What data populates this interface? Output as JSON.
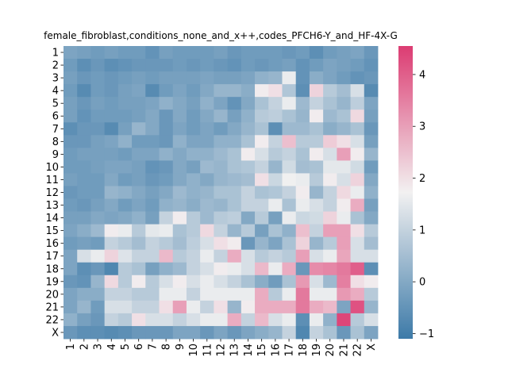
{
  "chart_data": {
    "type": "heatmap",
    "title": "female_fibroblast,conditions_none_and_x++,codes_PFCH6-Y_and_HF-4X-G",
    "xlabel": "",
    "ylabel": "",
    "row_labels": [
      "1",
      "2",
      "3",
      "4",
      "5",
      "6",
      "7",
      "8",
      "9",
      "10",
      "11",
      "12",
      "13",
      "14",
      "15",
      "16",
      "17",
      "18",
      "19",
      "20",
      "21",
      "22",
      "X"
    ],
    "col_labels": [
      "1",
      "2",
      "3",
      "4",
      "5",
      "6",
      "7",
      "8",
      "9",
      "10",
      "11",
      "12",
      "13",
      "14",
      "15",
      "16",
      "17",
      "18",
      "19",
      "20",
      "21",
      "22",
      "X"
    ],
    "colorbar": {
      "min": -1.1,
      "max": 4.55,
      "ticks": [
        -1,
        0,
        1,
        2,
        3,
        4
      ],
      "colors": {
        "low": "#3d7aa8",
        "mid": "#f2f1f1",
        "high": "#dc3c72"
      }
    },
    "values": [
      [
        -0.1,
        -0.2,
        -0.3,
        -0.2,
        -0.3,
        -0.3,
        -0.5,
        -0.2,
        -0.3,
        -0.3,
        -0.3,
        -0.2,
        -0.4,
        -0.3,
        -0.3,
        -0.3,
        -0.4,
        -0.3,
        -0.6,
        -0.3,
        -0.2,
        -0.1,
        -0.4
      ],
      [
        -0.3,
        -0.6,
        -0.4,
        -0.6,
        -0.5,
        -0.4,
        -0.4,
        -0.4,
        -0.3,
        -0.4,
        -0.3,
        -0.4,
        -0.5,
        -0.3,
        -0.4,
        -0.3,
        -0.2,
        -0.5,
        -0.3,
        -0.1,
        -0.2,
        -0.3,
        -0.5
      ],
      [
        -0.2,
        -0.4,
        -0.3,
        -0.4,
        -0.3,
        -0.2,
        -0.3,
        -0.2,
        -0.2,
        -0.2,
        -0.1,
        -0.2,
        -0.2,
        -0.1,
        0.2,
        0.3,
        1.6,
        -0.5,
        0.1,
        -0.1,
        -0.3,
        -0.5,
        -0.4
      ],
      [
        -0.3,
        -0.7,
        -0.3,
        -0.4,
        -0.2,
        -0.1,
        -0.7,
        -0.3,
        -0.1,
        -0.3,
        0.0,
        0.3,
        0.3,
        0.1,
        1.8,
        2.0,
        0.7,
        -0.6,
        2.2,
        0.8,
        0.5,
        1.3,
        -0.7
      ],
      [
        -0.2,
        -0.4,
        -0.2,
        -0.3,
        -0.2,
        -0.2,
        -0.1,
        0.2,
        0.0,
        -0.2,
        0.2,
        -0.1,
        -0.5,
        0.0,
        0.6,
        1.0,
        1.6,
        0.4,
        1.0,
        0.6,
        0.3,
        0.9,
        -0.1
      ],
      [
        -0.2,
        -0.5,
        -0.3,
        -0.3,
        -0.3,
        -0.2,
        0.0,
        -0.4,
        0.0,
        -0.3,
        0.0,
        0.3,
        -0.2,
        0.2,
        0.8,
        0.9,
        0.6,
        0.3,
        1.8,
        0.4,
        0.6,
        2.1,
        -0.2
      ],
      [
        -0.6,
        -0.4,
        -0.4,
        -0.7,
        -0.2,
        0.3,
        0.0,
        -0.4,
        -0.1,
        -0.3,
        -0.1,
        -0.3,
        0.0,
        0.3,
        0.6,
        -0.6,
        0.4,
        0.4,
        0.6,
        0.1,
        0.3,
        0.6,
        -0.4
      ],
      [
        -0.4,
        -0.4,
        -0.2,
        -0.1,
        0.2,
        -0.3,
        -0.3,
        -0.4,
        0.2,
        -0.1,
        -0.1,
        0.2,
        0.2,
        0.6,
        1.8,
        1.0,
        2.5,
        0.8,
        0.8,
        2.3,
        2.0,
        1.3,
        -0.2
      ],
      [
        -0.3,
        -0.2,
        -0.2,
        -0.2,
        -0.3,
        -0.1,
        -0.1,
        0.2,
        0.0,
        0.2,
        0.2,
        0.4,
        0.6,
        1.8,
        1.3,
        0.8,
        1.0,
        0.6,
        1.8,
        1.3,
        3.0,
        1.8,
        0.3
      ],
      [
        -0.3,
        -0.3,
        -0.2,
        -0.1,
        -0.1,
        -0.2,
        -0.5,
        -0.4,
        0.0,
        -0.2,
        0.4,
        0.3,
        0.6,
        0.7,
        1.0,
        0.3,
        1.2,
        0.5,
        0.6,
        1.5,
        1.5,
        1.2,
        -0.3
      ],
      [
        -0.2,
        -0.3,
        -0.3,
        0.0,
        -0.3,
        -0.2,
        -0.4,
        -0.3,
        0.0,
        0.2,
        0.0,
        0.3,
        0.4,
        0.5,
        2.0,
        1.1,
        1.7,
        1.6,
        0.8,
        1.8,
        1.3,
        2.2,
        0.0
      ],
      [
        -0.4,
        -0.3,
        -0.3,
        0.3,
        0.2,
        0.0,
        -0.2,
        0.0,
        0.4,
        0.2,
        0.3,
        0.6,
        0.6,
        1.0,
        0.6,
        0.7,
        1.0,
        1.8,
        0.3,
        1.0,
        2.1,
        1.6,
        0.2
      ],
      [
        -0.3,
        -0.4,
        -0.2,
        0.0,
        -0.3,
        -0.1,
        -0.3,
        0.2,
        0.3,
        0.1,
        0.4,
        0.3,
        0.6,
        1.0,
        1.0,
        1.6,
        0.6,
        1.6,
        1.3,
        1.0,
        1.8,
        2.8,
        -0.2
      ],
      [
        -0.2,
        -0.2,
        0.0,
        -0.1,
        0.0,
        0.2,
        -0.2,
        1.0,
        1.8,
        0.8,
        0.4,
        0.8,
        0.9,
        0.0,
        0.8,
        -0.2,
        1.6,
        1.1,
        1.2,
        2.2,
        1.6,
        0.6,
        0.0
      ],
      [
        -0.1,
        0.1,
        0.4,
        1.8,
        1.6,
        0.8,
        1.5,
        1.6,
        0.6,
        0.8,
        2.1,
        1.0,
        0.3,
        0.8,
        -0.2,
        0.6,
        0.2,
        2.5,
        1.0,
        3.0,
        3.0,
        2.0,
        0.8
      ],
      [
        -0.3,
        -0.2,
        -0.3,
        1.0,
        0.8,
        0.5,
        1.0,
        0.8,
        0.5,
        0.9,
        1.3,
        2.0,
        1.8,
        -0.4,
        0.3,
        -0.1,
        0.6,
        2.2,
        0.3,
        0.8,
        3.0,
        1.3,
        0.5
      ],
      [
        -0.1,
        1.3,
        1.6,
        2.2,
        1.4,
        1.0,
        1.0,
        2.6,
        0.8,
        1.0,
        1.6,
        1.0,
        2.8,
        1.3,
        0.8,
        1.0,
        0.8,
        3.0,
        1.3,
        1.6,
        2.9,
        1.3,
        1.3
      ],
      [
        -0.1,
        -0.6,
        -0.4,
        -0.8,
        0.8,
        0.6,
        -0.2,
        0.2,
        0.4,
        1.0,
        1.3,
        1.8,
        1.6,
        1.3,
        2.6,
        1.6,
        2.8,
        -0.4,
        3.3,
        3.4,
        3.6,
        4.0,
        -0.6
      ],
      [
        -0.4,
        -0.5,
        0.3,
        2.1,
        0.8,
        1.8,
        0.8,
        1.3,
        1.8,
        1.3,
        1.6,
        1.3,
        1.0,
        0.6,
        0.1,
        -0.3,
        0.6,
        3.1,
        1.3,
        0.4,
        3.5,
        2.0,
        1.8
      ],
      [
        -0.1,
        0.1,
        0.1,
        1.0,
        1.0,
        0.8,
        0.8,
        1.6,
        1.6,
        1.0,
        1.6,
        1.6,
        1.6,
        1.6,
        2.8,
        0.8,
        1.6,
        3.6,
        1.6,
        1.6,
        3.1,
        2.8,
        0.8
      ],
      [
        -0.1,
        0.3,
        -0.3,
        1.3,
        1.3,
        1.0,
        1.0,
        2.0,
        3.0,
        1.6,
        1.0,
        2.0,
        0.3,
        1.8,
        2.8,
        2.8,
        2.8,
        3.6,
        2.8,
        2.6,
        -0.1,
        4.2,
        0.3
      ],
      [
        0.2,
        -0.2,
        -0.4,
        1.0,
        0.8,
        2.0,
        1.3,
        1.3,
        1.0,
        1.3,
        1.6,
        1.6,
        2.8,
        1.0,
        2.6,
        1.3,
        1.6,
        -0.6,
        1.6,
        0.2,
        4.4,
        0.8,
        1.3
      ],
      [
        -0.4,
        -0.6,
        -0.6,
        -0.7,
        -0.6,
        -0.4,
        -0.4,
        -0.4,
        -0.1,
        -0.1,
        -0.4,
        -0.1,
        -0.4,
        -0.1,
        0.1,
        0.3,
        1.0,
        -0.8,
        1.0,
        0.6,
        -0.4,
        0.6,
        -0.1
      ]
    ]
  }
}
